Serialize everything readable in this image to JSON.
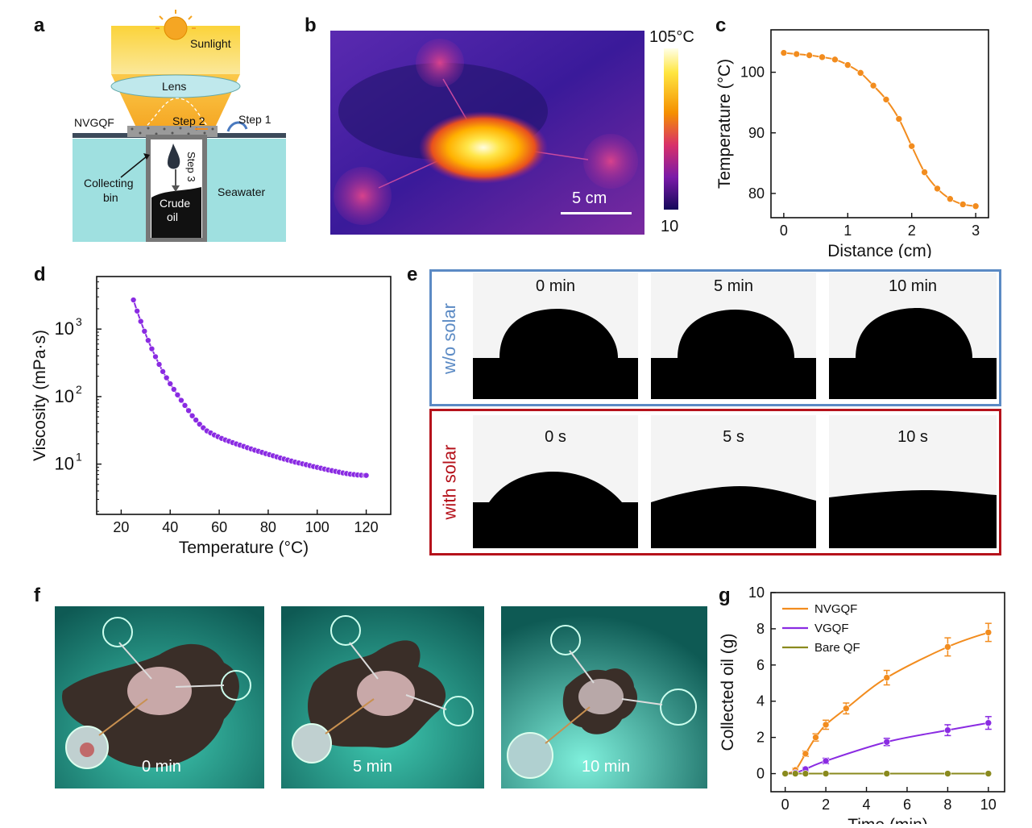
{
  "panel_labels": {
    "a": "a",
    "b": "b",
    "c": "c",
    "d": "d",
    "e": "e",
    "f": "f",
    "g": "g"
  },
  "panel_a": {
    "sunlight": "Sunlight",
    "lens": "Lens",
    "nvgqf": "NVGQF",
    "step1": "Step 1",
    "step2": "Step 2",
    "step3": "Step 3",
    "collecting": "Collecting",
    "bin": "bin",
    "seawater": "Seawater",
    "crude": "Crude",
    "oil": "oil"
  },
  "panel_b": {
    "colorbar_max": "105°C",
    "colorbar_min": "10",
    "scale": "5 cm"
  },
  "panel_e": {
    "row1_label": "w/o solar",
    "row2_label": "with solar",
    "row1_times": [
      "0 min",
      "5 min",
      "10 min"
    ],
    "row2_times": [
      "0 s",
      "5 s",
      "10 s"
    ],
    "colors": {
      "row1": "#5b8ac4",
      "row2": "#b5121b"
    }
  },
  "panel_f": {
    "times": [
      "0 min",
      "5 min",
      "10 min"
    ]
  },
  "chart_data": [
    {
      "id": "c",
      "type": "line",
      "xlabel": "Distance (cm)",
      "ylabel": "Temperature (°C)",
      "xlim": [
        -0.2,
        3.2
      ],
      "ylim": [
        76,
        107
      ],
      "xticks": [
        0,
        1,
        2,
        3
      ],
      "yticks": [
        80,
        90,
        100
      ],
      "color": "#f28c1e",
      "x": [
        0,
        0.2,
        0.4,
        0.6,
        0.8,
        1.0,
        1.2,
        1.4,
        1.6,
        1.8,
        2.0,
        2.2,
        2.4,
        2.6,
        2.8,
        3.0
      ],
      "y": [
        103.2,
        103.0,
        102.8,
        102.5,
        102.1,
        101.2,
        99.9,
        97.8,
        95.5,
        92.3,
        87.8,
        83.5,
        80.8,
        79.1,
        78.2,
        77.9
      ]
    },
    {
      "id": "d",
      "type": "line",
      "yscale": "log",
      "xlabel": "Temperature (°C)",
      "ylabel": "Viscosity (mPa·s)",
      "xlim": [
        10,
        130
      ],
      "ylim": [
        1.8,
        6000
      ],
      "xticks": [
        20,
        40,
        60,
        80,
        100,
        120
      ],
      "yticks": [
        10,
        100,
        1000
      ],
      "ytick_labels": [
        "10",
        "10",
        "10"
      ],
      "ytick_exponents": [
        "1",
        "2",
        "3"
      ],
      "color": "#8a2be2",
      "x": [
        25,
        26.5,
        28,
        29.5,
        31,
        32.5,
        34,
        35.5,
        37,
        38.5,
        40,
        41.5,
        43,
        44.5,
        46,
        47.5,
        49,
        50.5,
        52,
        53.5,
        55,
        56.5,
        58,
        59.5,
        61,
        62.5,
        64,
        65.5,
        67,
        68.5,
        70,
        71.5,
        73,
        74.5,
        76,
        77.5,
        79,
        80.5,
        82,
        83.5,
        85,
        86.5,
        88,
        89.5,
        91,
        92.5,
        94,
        95.5,
        97,
        98.5,
        100,
        101.5,
        103,
        104.5,
        106,
        107.5,
        109,
        110.5,
        112,
        113.5,
        115,
        116.5,
        118,
        119.5,
        120
      ],
      "y": [
        2700,
        1850,
        1300,
        930,
        680,
        510,
        390,
        300,
        235,
        190,
        155,
        128,
        106,
        88,
        74,
        62,
        52,
        45,
        39,
        34.5,
        31,
        29,
        27,
        25.5,
        24,
        22.8,
        21.8,
        20.8,
        19.9,
        19.1,
        18.3,
        17.5,
        16.8,
        16.1,
        15.5,
        14.9,
        14.3,
        13.8,
        13.3,
        12.8,
        12.3,
        11.9,
        11.5,
        11.1,
        10.7,
        10.4,
        10.1,
        9.8,
        9.5,
        9.2,
        8.95,
        8.7,
        8.45,
        8.2,
        8.0,
        7.8,
        7.6,
        7.4,
        7.25,
        7.1,
        7.0,
        6.9,
        6.85,
        6.8,
        6.8
      ]
    },
    {
      "id": "g",
      "type": "line",
      "xlabel": "Time (min)",
      "ylabel": "Collected oil (g)",
      "xlim": [
        -0.7,
        10.8
      ],
      "ylim": [
        -1,
        10
      ],
      "xticks": [
        0,
        2,
        4,
        6,
        8,
        10
      ],
      "yticks": [
        0,
        2,
        4,
        6,
        8,
        10
      ],
      "legend": "top-left",
      "series": [
        {
          "name": "NVGQF",
          "color": "#f28c1e",
          "x": [
            0,
            0.5,
            1,
            1.5,
            2,
            3,
            5,
            8,
            10
          ],
          "y": [
            0,
            0.2,
            1.1,
            2.0,
            2.7,
            3.6,
            5.3,
            7.0,
            7.8
          ],
          "err": [
            0.05,
            0.1,
            0.15,
            0.2,
            0.25,
            0.3,
            0.4,
            0.5,
            0.5
          ]
        },
        {
          "name": "VGQF",
          "color": "#8a2be2",
          "x": [
            0,
            0.5,
            1,
            2,
            5,
            8,
            10
          ],
          "y": [
            0,
            0.05,
            0.25,
            0.7,
            1.75,
            2.4,
            2.8
          ],
          "err": [
            0.05,
            0.05,
            0.1,
            0.15,
            0.2,
            0.3,
            0.35
          ]
        },
        {
          "name": "Bare QF",
          "color": "#8a8a1e",
          "x": [
            0,
            0.5,
            1,
            2,
            5,
            8,
            10
          ],
          "y": [
            0,
            0,
            0,
            0,
            0,
            0,
            0
          ],
          "err": [
            0,
            0,
            0,
            0,
            0,
            0,
            0
          ]
        }
      ]
    }
  ]
}
